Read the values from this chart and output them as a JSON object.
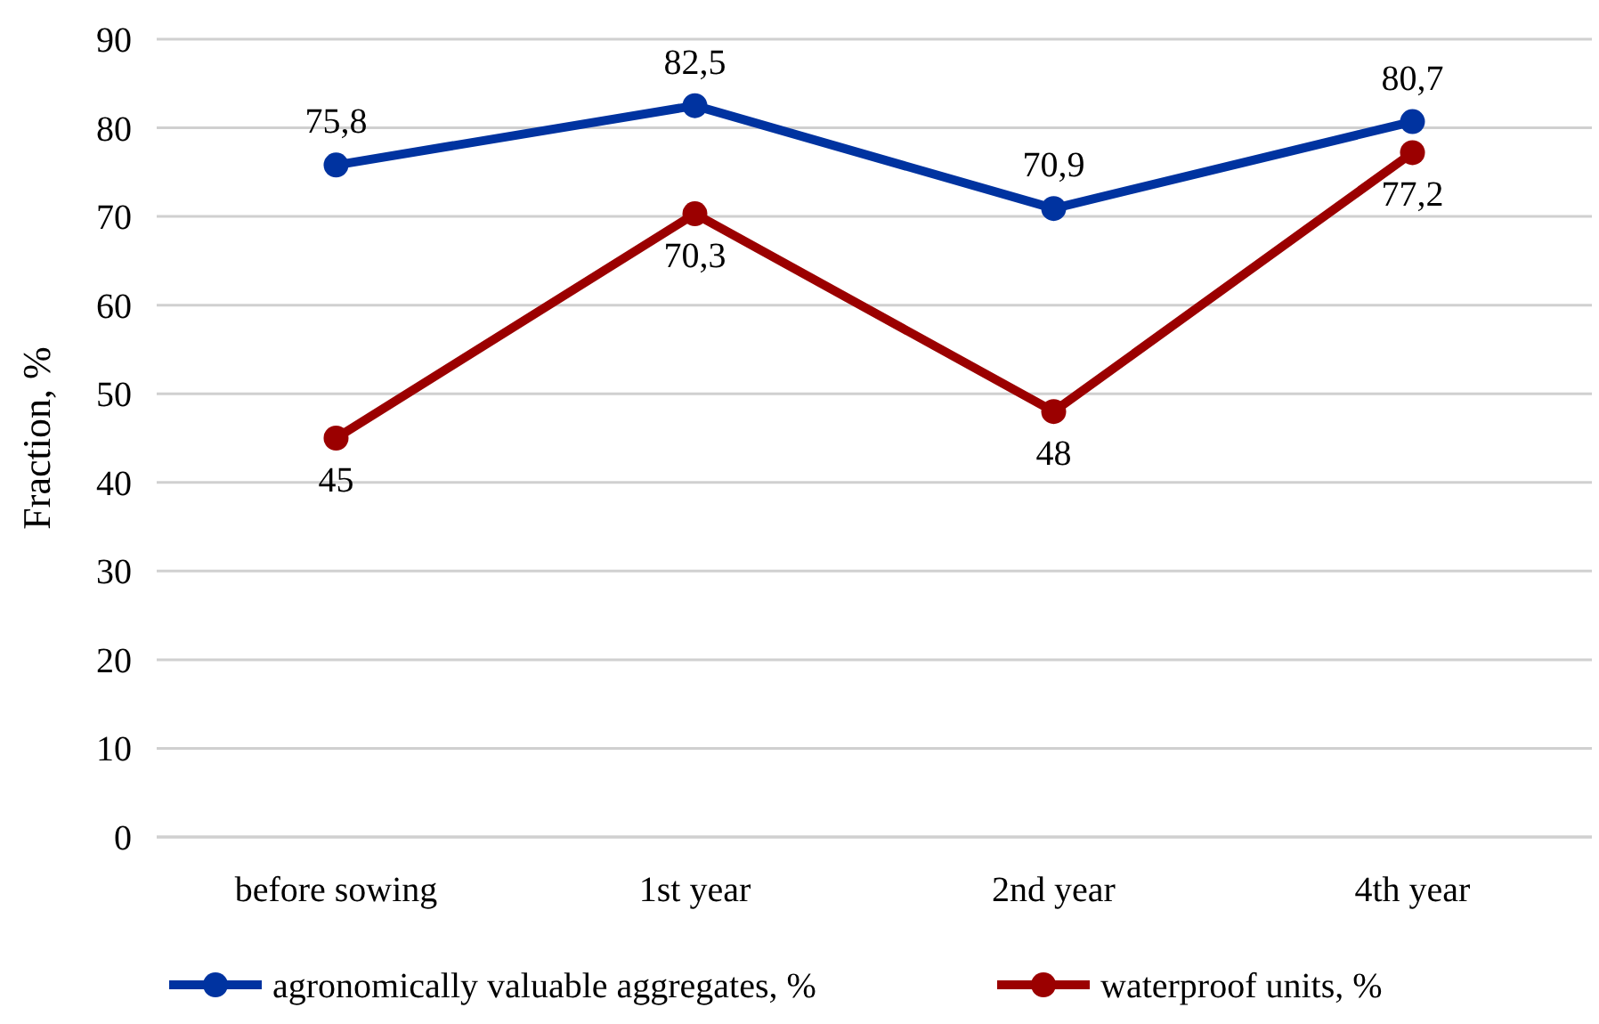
{
  "chart_data": {
    "type": "line",
    "ylabel": "Fraction, %",
    "categories": [
      "before sowing",
      "1st year",
      "2nd year",
      "4th year"
    ],
    "series": [
      {
        "name": "agronomically valuable aggregates, %",
        "color": "#0033a0",
        "values": [
          75.8,
          82.5,
          70.9,
          80.7
        ],
        "value_labels": [
          "75,8",
          "82,5",
          "70,9",
          "80,7"
        ]
      },
      {
        "name": "waterproof units, %",
        "color": "#9b0000",
        "values": [
          45,
          70.3,
          48,
          77.2
        ],
        "value_labels": [
          "45",
          "70,3",
          "48",
          "77,2"
        ]
      }
    ],
    "ylim": [
      0,
      90
    ],
    "yticks": [
      0,
      10,
      20,
      30,
      40,
      50,
      60,
      70,
      80,
      90
    ],
    "grid": "y",
    "legend": "bottom",
    "marker": "circle",
    "line_style": "solid"
  }
}
